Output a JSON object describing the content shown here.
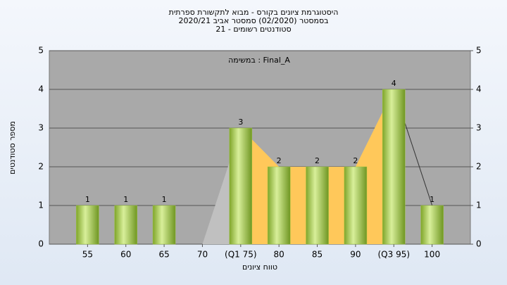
{
  "chart_data": {
    "type": "bar",
    "title": [
      "היסטוגרמת ציונים בקורס - מבוא לתקשורת ספרתית",
      "בסמסטר  (02/2020)  סמסטר אביב 2020/21",
      "סטודנטים רשומים - 21"
    ],
    "annotation": "במשימה : Final_A",
    "x_label": "טווח ציונים",
    "y_label": "מספר סטודנטים",
    "categories": [
      "55",
      "60",
      "65",
      "70",
      "(Q1 75)",
      "80",
      "85",
      "90",
      "(Q3 95)",
      "100"
    ],
    "values": [
      1,
      1,
      1,
      0,
      3,
      2,
      2,
      2,
      4,
      1
    ],
    "value_labels": [
      "1",
      "1",
      "1",
      null,
      "3",
      "2",
      "2",
      "2",
      "4",
      "1"
    ],
    "color": "#9bc33f",
    "area_color": "#ffc85a",
    "outer_area_color": "#c0c0c0",
    "ylim": [
      0,
      5
    ],
    "yticks": [
      0,
      1,
      2,
      3,
      4,
      5
    ],
    "y2lim": [
      0,
      5
    ],
    "y2ticks": [
      0,
      1,
      2,
      3,
      4,
      5
    ],
    "grid": true
  }
}
